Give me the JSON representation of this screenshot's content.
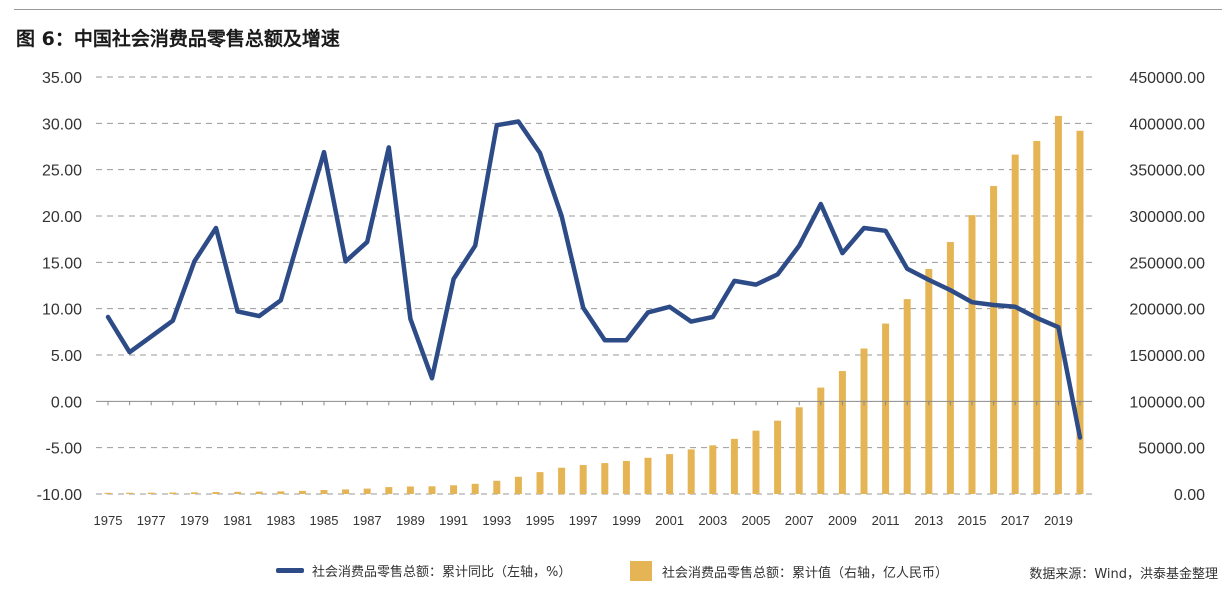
{
  "title": "图 6：中国社会消费品零售总额及增速",
  "legend": {
    "line_label": "社会消费品零售总额：累计同比（左轴，%）",
    "bar_label": "社会消费品零售总额：累计值（右轴，亿人民币）"
  },
  "source": "数据来源：Wind，洪泰基金整理",
  "colors": {
    "line": "#2d4b87",
    "bar": "#e5b555",
    "grid": "#9a9a9a"
  },
  "chart_data": {
    "type": "bar+line",
    "years": [
      1975,
      1976,
      1977,
      1978,
      1979,
      1980,
      1981,
      1982,
      1983,
      1984,
      1985,
      1986,
      1987,
      1988,
      1989,
      1990,
      1991,
      1992,
      1993,
      1994,
      1995,
      1996,
      1997,
      1998,
      1999,
      2000,
      2001,
      2002,
      2003,
      2004,
      2005,
      2006,
      2007,
      2008,
      2009,
      2010,
      2011,
      2012,
      2013,
      2014,
      2015,
      2016,
      2017,
      2018,
      2019,
      2020
    ],
    "x_tick_labels": [
      "1975",
      "1977",
      "1979",
      "1981",
      "1983",
      "1985",
      "1987",
      "1989",
      "1991",
      "1993",
      "1995",
      "1997",
      "1999",
      "2001",
      "2003",
      "2005",
      "2007",
      "2009",
      "2011",
      "2013",
      "2015",
      "2017",
      "2019"
    ],
    "series": [
      {
        "name": "社会消费品零售总额：累计同比（左轴，%）",
        "type": "line",
        "axis": "left",
        "values": [
          9.1,
          5.3,
          7.0,
          8.7,
          15.1,
          18.7,
          9.7,
          9.2,
          10.9,
          18.9,
          26.9,
          15.1,
          17.2,
          27.4,
          8.9,
          2.5,
          13.2,
          16.8,
          29.8,
          30.2,
          26.8,
          20.0,
          10.1,
          6.6,
          6.6,
          9.6,
          10.2,
          8.6,
          9.1,
          13.0,
          12.6,
          13.7,
          16.8,
          21.3,
          16.0,
          18.7,
          18.4,
          14.3,
          13.1,
          12.0,
          10.7,
          10.4,
          10.2,
          9.0,
          8.0,
          -3.9
        ]
      },
      {
        "name": "社会消费品零售总额：累计值（右轴，亿人民币）",
        "type": "bar",
        "axis": "right",
        "values": [
          1271,
          1340,
          1433,
          1559,
          1800,
          2140,
          2350,
          2570,
          2849,
          3376,
          4305,
          4950,
          5820,
          7440,
          8101,
          8300,
          9416,
          10994,
          14270,
          18623,
          23614,
          28360,
          31253,
          33378,
          35648,
          39106,
          43055,
          48136,
          52516,
          59501,
          68353,
          79145,
          93572,
          114830,
          132678,
          156998,
          183919,
          210307,
          242843,
          271896,
          300931,
          332316,
          366262,
          380987,
          408017,
          391981
        ]
      }
    ],
    "y_left": {
      "min": -10,
      "max": 35,
      "ticks": [
        "-10.00",
        "-5.00",
        "0.00",
        "5.00",
        "10.00",
        "15.00",
        "20.00",
        "25.00",
        "30.00",
        "35.00"
      ]
    },
    "y_right": {
      "min": 0,
      "max": 450000,
      "ticks": [
        "0.00",
        "50000.00",
        "100000.00",
        "150000.00",
        "200000.00",
        "250000.00",
        "300000.00",
        "350000.00",
        "400000.00",
        "450000.00"
      ]
    },
    "grid": "horizontal dashed"
  }
}
